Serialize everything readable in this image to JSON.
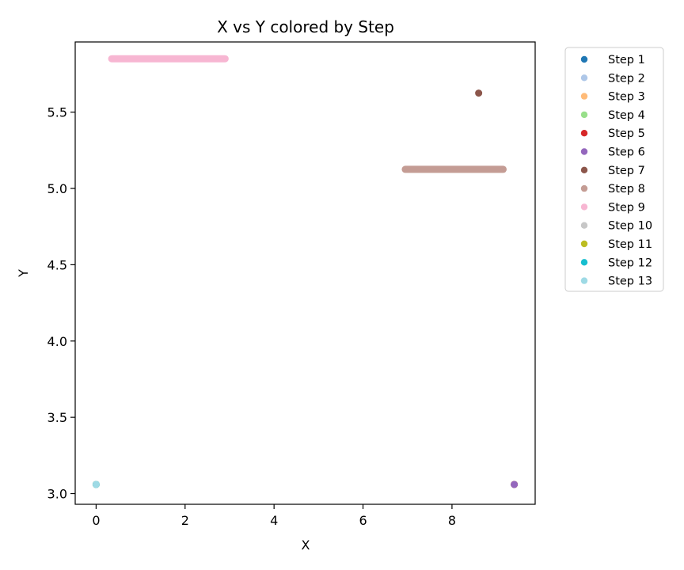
{
  "chart_data": {
    "type": "scatter",
    "title": "X vs Y colored by Step",
    "xlabel": "X",
    "ylabel": "Y",
    "xlim": [
      -0.47,
      9.87
    ],
    "ylim": [
      2.93,
      5.96
    ],
    "xticks": [
      0,
      2,
      4,
      6,
      8
    ],
    "yticks": [
      3.0,
      3.5,
      4.0,
      4.5,
      5.0,
      5.5
    ],
    "xtick_labels": [
      "0",
      "2",
      "4",
      "6",
      "8"
    ],
    "ytick_labels": [
      "3.0",
      "3.5",
      "4.0",
      "4.5",
      "5.0",
      "5.5"
    ],
    "grid": false,
    "legend_position": "outside-top-right",
    "series": [
      {
        "name": "Step 1",
        "color": "#1f77b4",
        "points": [
          [
            0,
            3.06
          ]
        ]
      },
      {
        "name": "Step 2",
        "color": "#aec7e8",
        "points": [
          [
            0,
            3.06
          ]
        ]
      },
      {
        "name": "Step 3",
        "color": "#ffbb78",
        "points": [
          [
            9.4,
            3.06
          ]
        ]
      },
      {
        "name": "Step 4",
        "color": "#98df8a",
        "points": [
          [
            9.4,
            3.06
          ]
        ]
      },
      {
        "name": "Step 5",
        "color": "#d62728",
        "points": [
          [
            9.4,
            3.06
          ]
        ]
      },
      {
        "name": "Step 6",
        "color": "#9467bd",
        "points": [
          [
            9.4,
            3.06
          ]
        ]
      },
      {
        "name": "Step 7",
        "color": "#8c564b",
        "points": [
          [
            8.6,
            5.625
          ]
        ]
      },
      {
        "name": "Step 8",
        "color": "#c49c94",
        "line": {
          "x_from": 6.95,
          "x_to": 9.15,
          "y": 5.125
        }
      },
      {
        "name": "Step 9",
        "color": "#f7b6d2",
        "line": {
          "x_from": 0.35,
          "x_to": 2.9,
          "y": 5.85
        }
      },
      {
        "name": "Step 10",
        "color": "#c7c7c7",
        "points": [
          [
            0,
            3.06
          ]
        ]
      },
      {
        "name": "Step 11",
        "color": "#bcbd22",
        "points": [
          [
            0,
            3.06
          ]
        ]
      },
      {
        "name": "Step 12",
        "color": "#17becf",
        "points": [
          [
            0,
            3.06
          ]
        ]
      },
      {
        "name": "Step 13",
        "color": "#9edae5",
        "points": [
          [
            0,
            3.06
          ]
        ]
      }
    ]
  }
}
